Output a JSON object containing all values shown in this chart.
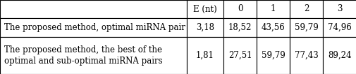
{
  "col_headers": [
    "E (nt)",
    "0",
    "1",
    "2",
    "3"
  ],
  "rows": [
    {
      "label_lines": [
        "The proposed method, optimal miRNA pair"
      ],
      "values": [
        "3,18",
        "18,52",
        "43,56",
        "59,79",
        "74,96"
      ]
    },
    {
      "label_lines": [
        "The proposed method, the best of the",
        "optimal and sub-optimal miRNA pairs"
      ],
      "values": [
        "1,81",
        "27,51",
        "59,79",
        "77,43",
        "89,24"
      ]
    }
  ],
  "background_color": "#ffffff",
  "text_color": "#000000",
  "border_color": "#000000",
  "font_size": 8.5
}
